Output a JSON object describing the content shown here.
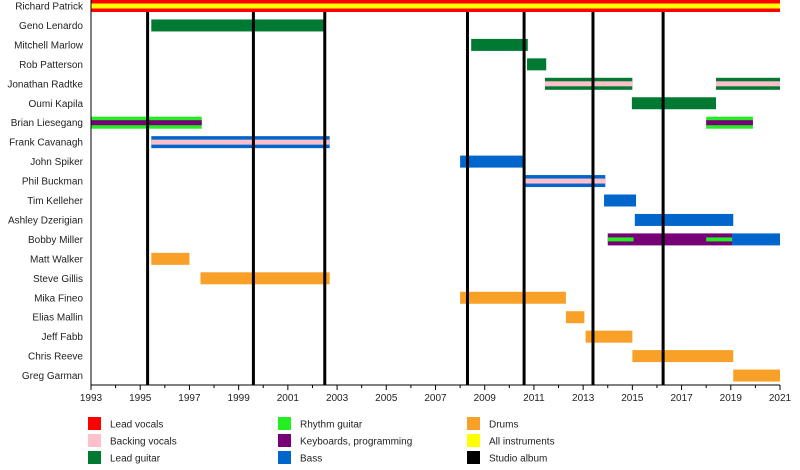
{
  "chart_data": {
    "type": "timeline",
    "title": "",
    "xlim": [
      1993,
      2021
    ],
    "x_ticks": [
      "1993",
      "1995",
      "1997",
      "1999",
      "2001",
      "2003",
      "2005",
      "2007",
      "2009",
      "2011",
      "2013",
      "2015",
      "2017",
      "2019",
      "2021"
    ],
    "colors": {
      "lead_vocals": "#ff0000",
      "backing_vocals": "#ffc0cb",
      "lead_guitar": "#007a33",
      "rhythm_guitar": "#22ee22",
      "keyboards": "#770077",
      "bass": "#0066cc",
      "drums": "#f8a028",
      "all_instruments": "#ffff00",
      "studio_album": "#000000"
    },
    "members": [
      {
        "name": "Richard Patrick",
        "bars": [
          {
            "role": "lead_vocals",
            "start": 1993,
            "end": 2021,
            "stripe": "all_instruments"
          }
        ]
      },
      {
        "name": "Geno Lenardo",
        "bars": [
          {
            "role": "lead_guitar",
            "start": 1995.45,
            "end": 2002.5
          }
        ]
      },
      {
        "name": "Mitchell Marlow",
        "bars": [
          {
            "role": "lead_guitar",
            "start": 2008.45,
            "end": 2010.75
          }
        ]
      },
      {
        "name": "Rob Patterson",
        "bars": [
          {
            "role": "lead_guitar",
            "start": 2010.72,
            "end": 2011.5
          }
        ]
      },
      {
        "name": "Jonathan Radtke",
        "bars": [
          {
            "role": "lead_guitar",
            "start": 2011.45,
            "end": 2015.0,
            "stripe": "backing_vocals"
          },
          {
            "role": "lead_guitar",
            "start": 2018.4,
            "end": 2021,
            "stripe": "backing_vocals"
          }
        ]
      },
      {
        "name": "Oumi Kapila",
        "bars": [
          {
            "role": "lead_guitar",
            "start": 2014.98,
            "end": 2018.4
          }
        ]
      },
      {
        "name": "Brian Liesegang",
        "bars": [
          {
            "role": "rhythm_guitar",
            "start": 1993,
            "end": 1997.5,
            "stripe": "keyboards"
          },
          {
            "role": "rhythm_guitar",
            "start": 2018,
            "end": 2019.9,
            "stripe": "keyboards"
          }
        ]
      },
      {
        "name": "Frank Cavanagh",
        "bars": [
          {
            "role": "bass",
            "start": 1995.45,
            "end": 2002.7,
            "stripe": "backing_vocals"
          }
        ]
      },
      {
        "name": "John Spiker",
        "bars": [
          {
            "role": "bass",
            "start": 2008.0,
            "end": 2010.6
          }
        ]
      },
      {
        "name": "Phil Buckman",
        "bars": [
          {
            "role": "bass",
            "start": 2010.6,
            "end": 2013.9,
            "stripe": "backing_vocals"
          }
        ]
      },
      {
        "name": "Tim Kelleher",
        "bars": [
          {
            "role": "bass",
            "start": 2013.85,
            "end": 2015.15
          }
        ]
      },
      {
        "name": "Ashley Dzerigian",
        "bars": [
          {
            "role": "bass",
            "start": 2015.1,
            "end": 2019.1
          }
        ]
      },
      {
        "name": "Bobby Miller",
        "bars": [
          {
            "role": "keyboards",
            "start": 2014.0,
            "end": 2019.05,
            "stripe_segments": [
              {
                "role": "rhythm_guitar",
                "start": 2014.0,
                "end": 2015.05
              },
              {
                "role": "rhythm_guitar",
                "start": 2018.0,
                "end": 2019.05
              }
            ]
          },
          {
            "role": "bass",
            "start": 2019.05,
            "end": 2021
          }
        ]
      },
      {
        "name": "Matt Walker",
        "bars": [
          {
            "role": "drums",
            "start": 1995.45,
            "end": 1997.0
          }
        ]
      },
      {
        "name": "Steve Gillis",
        "bars": [
          {
            "role": "drums",
            "start": 1997.45,
            "end": 2002.7
          }
        ]
      },
      {
        "name": "Mika Fineo",
        "bars": [
          {
            "role": "drums",
            "start": 2008.0,
            "end": 2012.3
          }
        ]
      },
      {
        "name": "Elias Mallin",
        "bars": [
          {
            "role": "drums",
            "start": 2012.3,
            "end": 2013.05
          }
        ]
      },
      {
        "name": "Jeff Fabb",
        "bars": [
          {
            "role": "drums",
            "start": 2013.1,
            "end": 2015.0
          }
        ]
      },
      {
        "name": "Chris Reeve",
        "bars": [
          {
            "role": "drums",
            "start": 2015.0,
            "end": 2019.1
          }
        ]
      },
      {
        "name": "Greg Garman",
        "bars": [
          {
            "role": "drums",
            "start": 2019.1,
            "end": 2021
          }
        ]
      }
    ],
    "studio_albums": [
      1995.3,
      1999.6,
      2002.5,
      2008.3,
      2010.6,
      2013.4,
      2016.25
    ],
    "legend": [
      {
        "role": "lead_vocals",
        "label": "Lead vocals"
      },
      {
        "role": "backing_vocals",
        "label": "Backing vocals"
      },
      {
        "role": "lead_guitar",
        "label": "Lead guitar"
      },
      {
        "role": "rhythm_guitar",
        "label": "Rhythm guitar"
      },
      {
        "role": "keyboards",
        "label": "Keyboards, programming"
      },
      {
        "role": "bass",
        "label": "Bass"
      },
      {
        "role": "drums",
        "label": "Drums"
      },
      {
        "role": "all_instruments",
        "label": "All instruments"
      },
      {
        "role": "studio_album",
        "label": "Studio album"
      }
    ],
    "legend_position": "bottom"
  }
}
